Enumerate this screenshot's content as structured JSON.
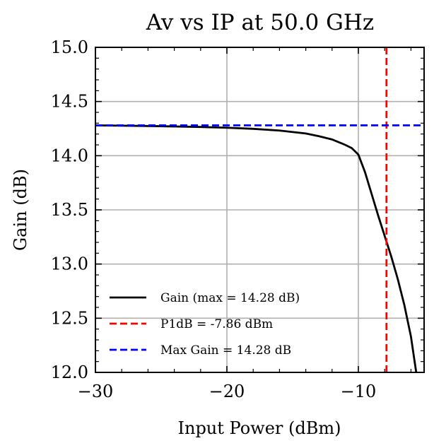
{
  "chart_data": {
    "type": "line",
    "title": "Av vs IP at 50.0 GHz",
    "xlabel": "Input Power (dBm)",
    "ylabel": "Gain (dB)",
    "xlim": [
      -30,
      -5
    ],
    "ylim": [
      12.0,
      15.0
    ],
    "xticks": [
      -30,
      -20,
      -10
    ],
    "xtick_labels": [
      "−30",
      "−20",
      "−10"
    ],
    "yticks": [
      12.0,
      12.5,
      13.0,
      13.5,
      14.0,
      14.5,
      15.0
    ],
    "ytick_labels": [
      "12.0",
      "12.5",
      "13.0",
      "13.5",
      "14.0",
      "14.5",
      "15.0"
    ],
    "grid": true,
    "legend_position": "lower-left",
    "series": [
      {
        "name": "Gain (max = 14.28 dB)",
        "color": "#000000",
        "style": "solid",
        "x": [
          -30,
          -28,
          -26,
          -24,
          -22,
          -20,
          -18,
          -16,
          -14,
          -13,
          -12,
          -11,
          -10.5,
          -10,
          -9.5,
          -9,
          -8.5,
          -8,
          -7.5,
          -7,
          -6.5,
          -6,
          -5.6
        ],
        "y": [
          14.28,
          14.277,
          14.274,
          14.27,
          14.265,
          14.258,
          14.248,
          14.232,
          14.205,
          14.18,
          14.15,
          14.1,
          14.07,
          14.01,
          13.85,
          13.65,
          13.45,
          13.26,
          13.07,
          12.86,
          12.62,
          12.33,
          12.0
        ]
      },
      {
        "name": "P1dB = -7.86 dBm",
        "color": "#ff0000",
        "style": "dashed",
        "orientation": "vertical",
        "value": -7.86
      },
      {
        "name": "Max Gain = 14.28 dB",
        "color": "#0000ff",
        "style": "dashed",
        "orientation": "horizontal",
        "value": 14.28
      }
    ]
  }
}
